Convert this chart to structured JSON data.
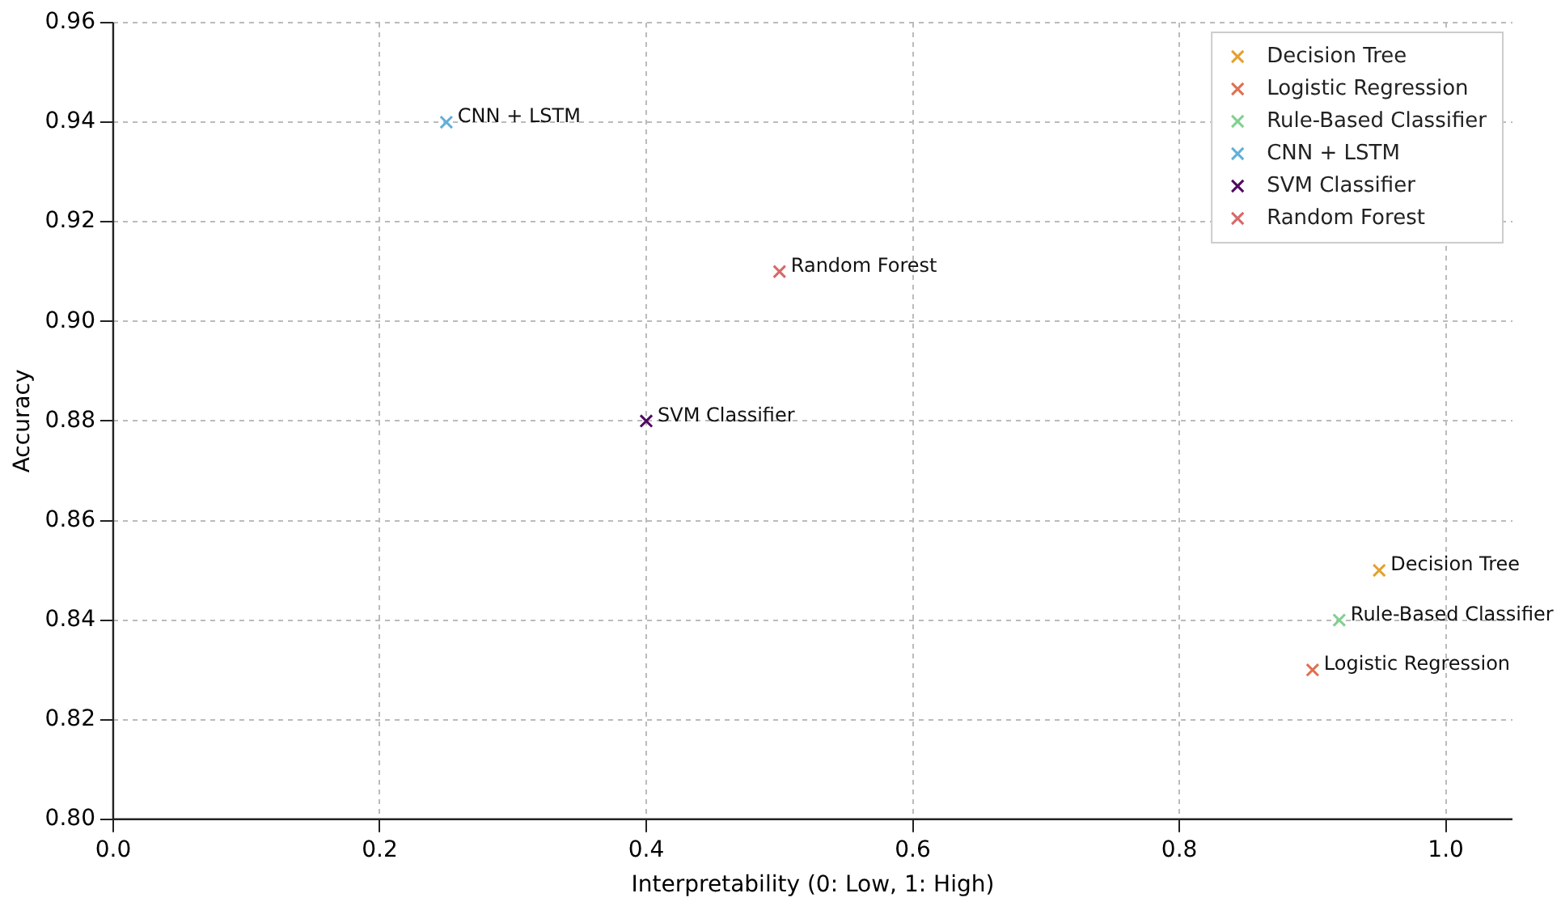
{
  "chart_data": {
    "type": "scatter",
    "xlabel": "Interpretability (0: Low, 1: High)",
    "ylabel": "Accuracy",
    "xlim": [
      0,
      1.05
    ],
    "xticks": [
      {
        "value": 0,
        "label": "0.0"
      },
      0.2,
      0.4,
      0.6,
      0.8,
      {
        "value": 1,
        "label": "1.0"
      }
    ],
    "ylim": [
      0.8,
      0.96
    ],
    "yticks": [
      {
        "value": 0.8,
        "label": "0.80"
      },
      0.82,
      0.84,
      0.86,
      0.88,
      {
        "value": 0.9,
        "label": "0.90"
      },
      0.92,
      0.94,
      0.96
    ],
    "grid": true,
    "legend": "top right",
    "marker": "cross",
    "series": [
      {
        "name": "Decision Tree",
        "color": "#e3a030",
        "x": [
          0.95
        ],
        "values": [
          0.85
        ]
      },
      {
        "name": "Logistic Regression",
        "color": "#e07050",
        "x": [
          0.9
        ],
        "values": [
          0.83
        ]
      },
      {
        "name": "Rule-Based Classifier",
        "color": "#80d090",
        "x": [
          0.92
        ],
        "values": [
          0.84
        ]
      },
      {
        "name": "CNN + LSTM",
        "color": "#60b0d8",
        "x": [
          0.25
        ],
        "values": [
          0.94
        ]
      },
      {
        "name": "SVM Classifier",
        "color": "#500a60",
        "x": [
          0.4
        ],
        "values": [
          0.88
        ]
      },
      {
        "name": "Random Forest",
        "color": "#d86868",
        "x": [
          0.5
        ],
        "values": [
          0.91
        ]
      }
    ],
    "annotations": [
      {
        "text": "Decision Tree",
        "x": 0.95,
        "y": 0.85
      },
      {
        "text": "Logistic Regression",
        "x": 0.9,
        "y": 0.83
      },
      {
        "text": "Rule-Based Classifier",
        "x": 0.92,
        "y": 0.84
      },
      {
        "text": "CNN + LSTM",
        "x": 0.25,
        "y": 0.94
      },
      {
        "text": "SVM Classifier",
        "x": 0.4,
        "y": 0.88
      },
      {
        "text": "Random Forest",
        "x": 0.5,
        "y": 0.91
      }
    ]
  }
}
